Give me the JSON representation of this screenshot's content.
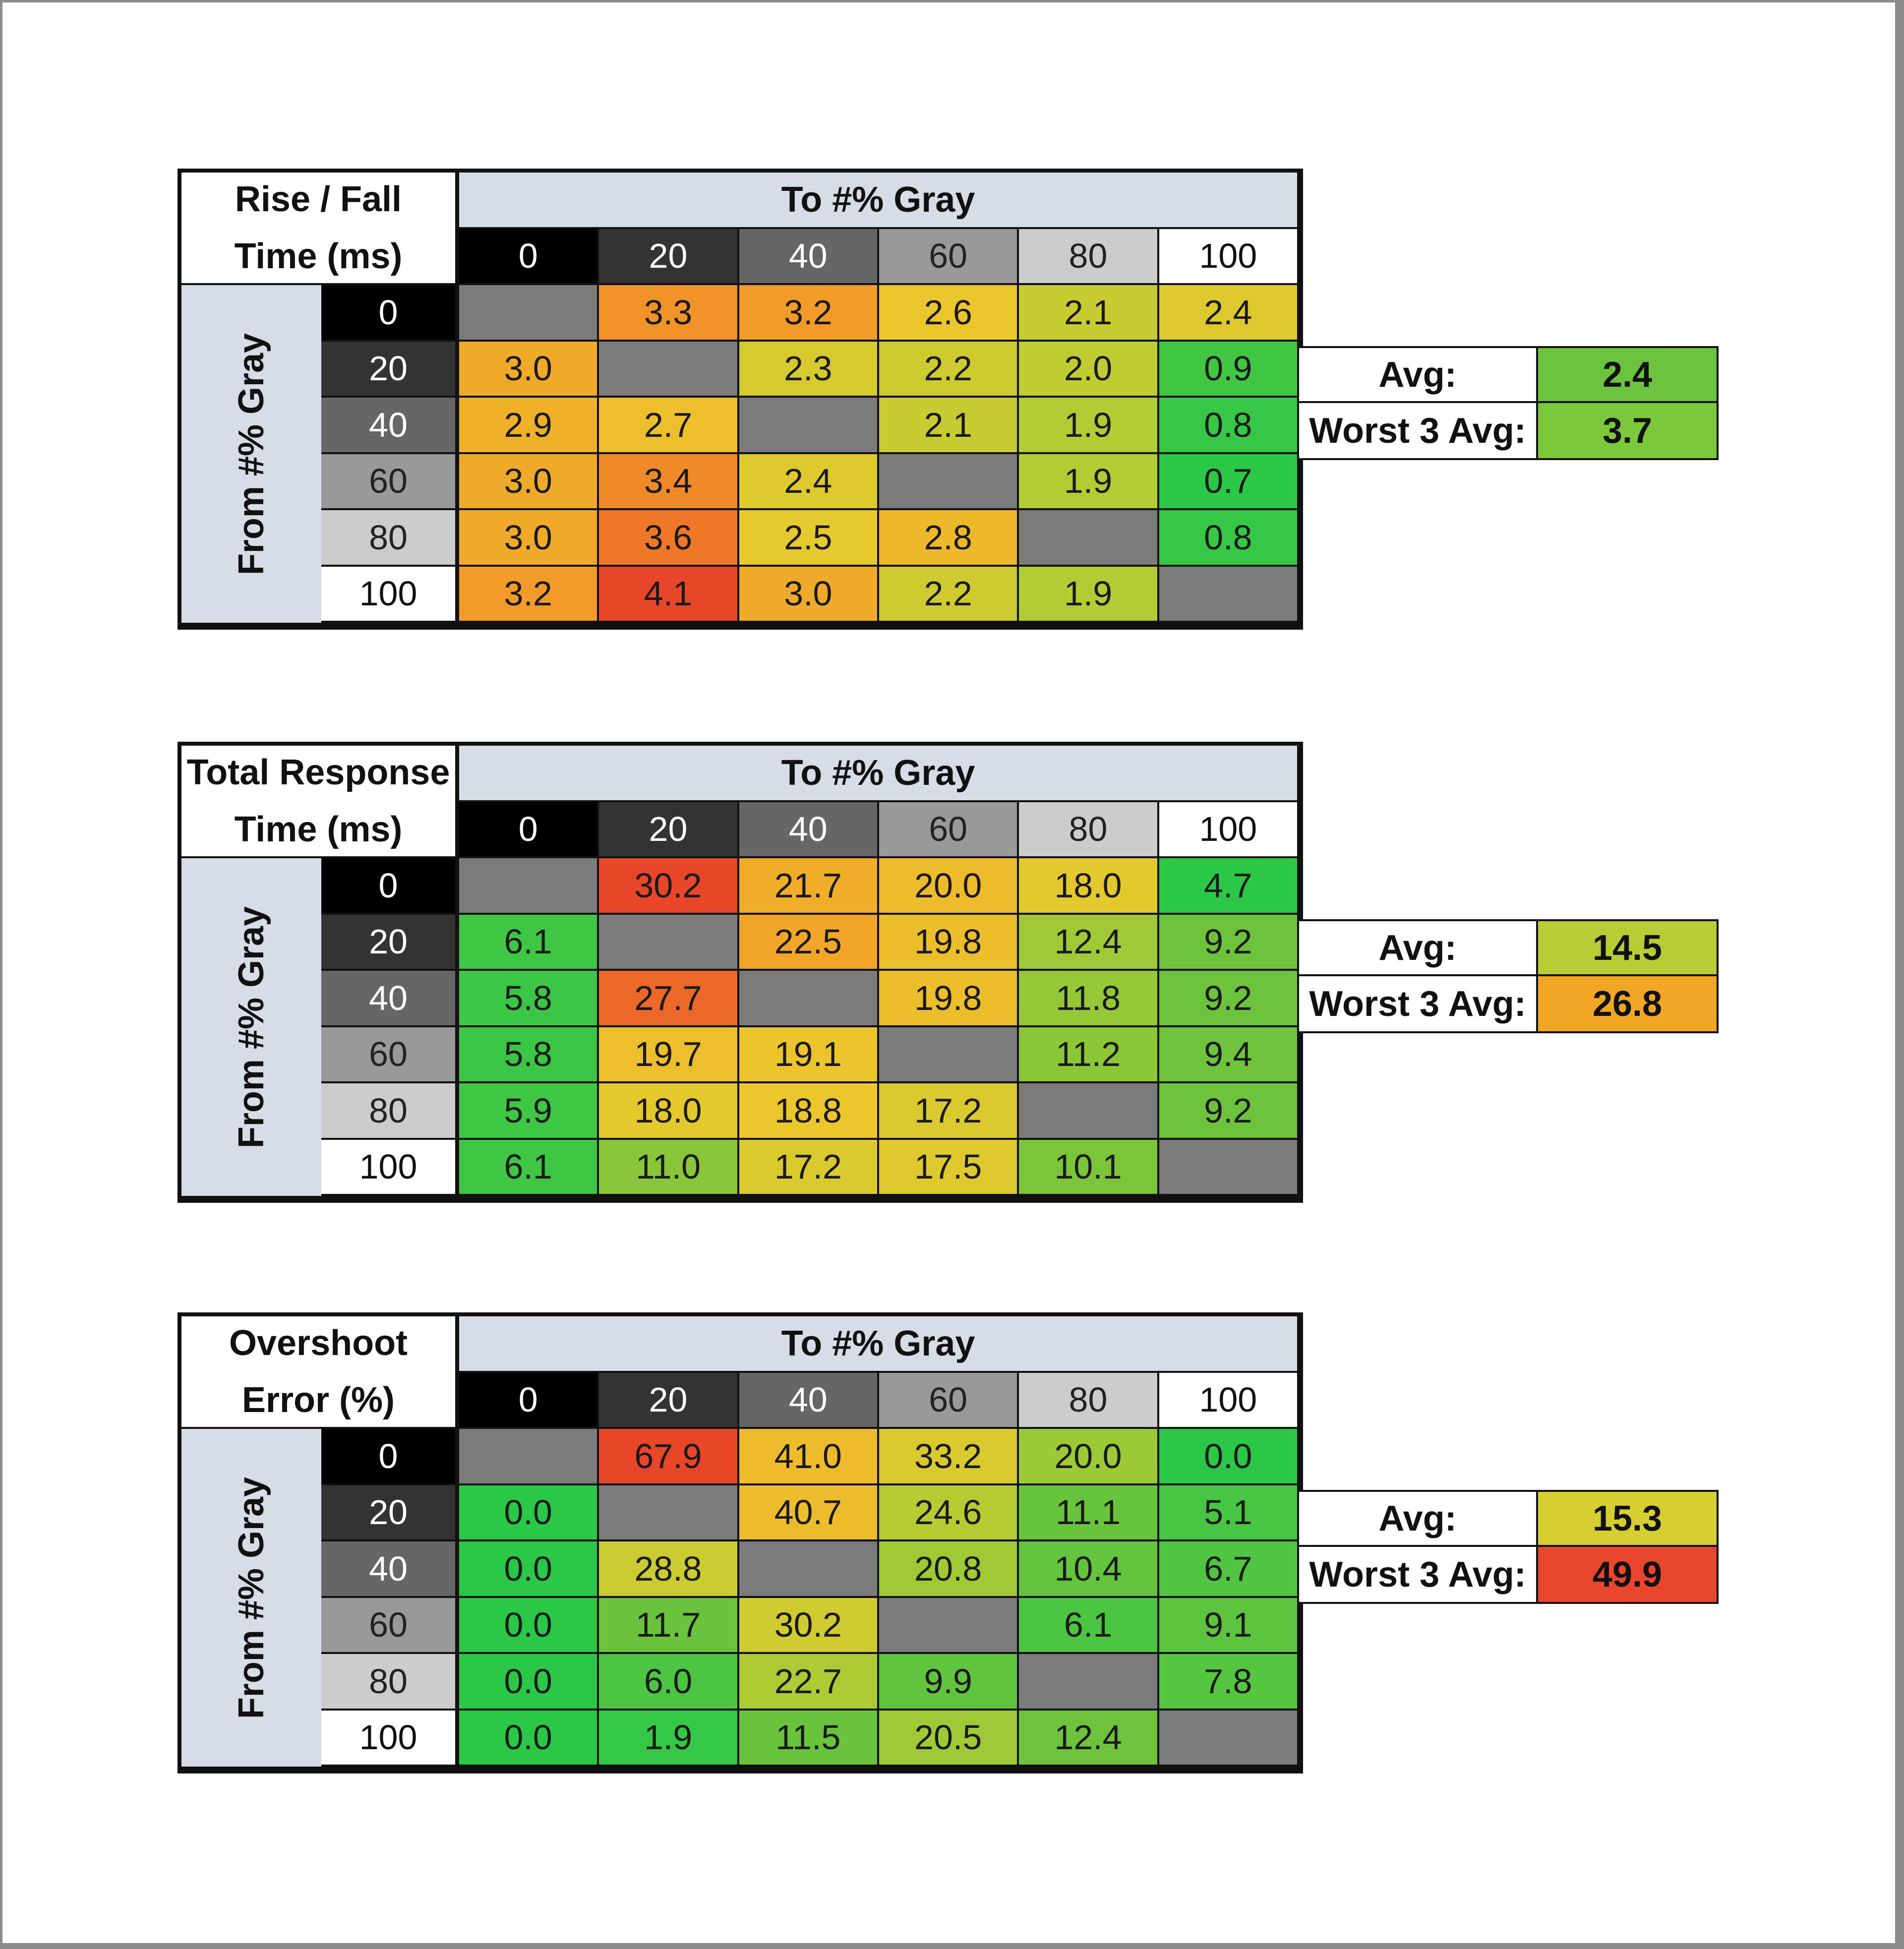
{
  "chart_data": [
    {
      "type": "heatmap",
      "title_lines": [
        "Rise / Fall",
        "Time (ms)"
      ],
      "x_header": "To #% Gray",
      "y_header": "From #% Gray",
      "columns": [
        "0",
        "20",
        "40",
        "60",
        "80",
        "100"
      ],
      "rows": [
        "0",
        "20",
        "40",
        "60",
        "80",
        "100"
      ],
      "values": [
        [
          null,
          "3.3",
          "3.2",
          "2.6",
          "2.1",
          "2.4"
        ],
        [
          "3.0",
          null,
          "2.3",
          "2.2",
          "2.0",
          "0.9"
        ],
        [
          "2.9",
          "2.7",
          null,
          "2.1",
          "1.9",
          "0.8"
        ],
        [
          "3.0",
          "3.4",
          "2.4",
          null,
          "1.9",
          "0.7"
        ],
        [
          "3.0",
          "3.6",
          "2.5",
          "2.8",
          null,
          "0.8"
        ],
        [
          "3.2",
          "4.1",
          "3.0",
          "2.2",
          "1.9",
          null
        ]
      ],
      "stats": [
        {
          "label": "Avg:",
          "value": "2.4",
          "color": "#6cc43e"
        },
        {
          "label": "Worst 3 Avg:",
          "value": "3.7",
          "color": "#7cc83b"
        }
      ]
    },
    {
      "type": "heatmap",
      "title_lines": [
        "Total Response",
        "Time (ms)"
      ],
      "x_header": "To #% Gray",
      "y_header": "From #% Gray",
      "columns": [
        "0",
        "20",
        "40",
        "60",
        "80",
        "100"
      ],
      "rows": [
        "0",
        "20",
        "40",
        "60",
        "80",
        "100"
      ],
      "values": [
        [
          null,
          "30.2",
          "21.7",
          "20.0",
          "18.0",
          "4.7"
        ],
        [
          "6.1",
          null,
          "22.5",
          "19.8",
          "12.4",
          "9.2"
        ],
        [
          "5.8",
          "27.7",
          null,
          "19.8",
          "11.8",
          "9.2"
        ],
        [
          "5.8",
          "19.7",
          "19.1",
          null,
          "11.2",
          "9.4"
        ],
        [
          "5.9",
          "18.0",
          "18.8",
          "17.2",
          null,
          "9.2"
        ],
        [
          "6.1",
          "11.0",
          "17.2",
          "17.5",
          "10.1",
          null
        ]
      ],
      "stats": [
        {
          "label": "Avg:",
          "value": "14.5",
          "color": "#b8cc35"
        },
        {
          "label": "Worst 3 Avg:",
          "value": "26.8",
          "color": "#f2a626"
        }
      ]
    },
    {
      "type": "heatmap",
      "title_lines": [
        "Overshoot",
        "Error (%)"
      ],
      "x_header": "To #% Gray",
      "y_header": "From #% Gray",
      "columns": [
        "0",
        "20",
        "40",
        "60",
        "80",
        "100"
      ],
      "rows": [
        "0",
        "20",
        "40",
        "60",
        "80",
        "100"
      ],
      "values": [
        [
          null,
          "67.9",
          "41.0",
          "33.2",
          "20.0",
          "0.0"
        ],
        [
          "0.0",
          null,
          "40.7",
          "24.6",
          "11.1",
          "5.1"
        ],
        [
          "0.0",
          "28.8",
          null,
          "20.8",
          "10.4",
          "6.7"
        ],
        [
          "0.0",
          "11.7",
          "30.2",
          null,
          "6.1",
          "9.1"
        ],
        [
          "0.0",
          "6.0",
          "22.7",
          "9.9",
          null,
          "7.8"
        ],
        [
          "0.0",
          "1.9",
          "11.5",
          "20.5",
          "12.4",
          null
        ]
      ],
      "stats": [
        {
          "label": "Avg:",
          "value": "15.3",
          "color": "#d6cf31"
        },
        {
          "label": "Worst 3 Avg:",
          "value": "49.9",
          "color": "#e9472d"
        }
      ]
    }
  ],
  "gray_level_colors": {
    "0": "#000000",
    "20": "#333333",
    "40": "#666666",
    "60": "#999999",
    "80": "#cccccc",
    "100": "#ffffff"
  },
  "gray_level_text": {
    "0": "#ffffff",
    "20": "#ffffff",
    "40": "#ffffff",
    "60": "#222222",
    "80": "#222222",
    "100": "#111111"
  }
}
